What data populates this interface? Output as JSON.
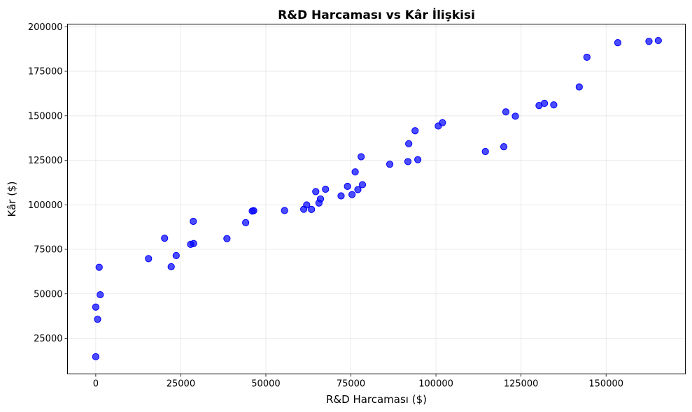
{
  "chart_data": {
    "type": "scatter",
    "title": "R&D Harcaması vs Kâr İlişkisi",
    "xlabel": "R&D Harcaması ($)",
    "ylabel": "Kâr ($)",
    "xlim": [
      -8300,
      173300
    ],
    "ylim": [
      5000,
      201500
    ],
    "xticks": [
      0,
      25000,
      50000,
      75000,
      100000,
      125000,
      150000
    ],
    "xtick_labels": [
      "0",
      "25000",
      "50000",
      "75000",
      "100000",
      "125000",
      "150000"
    ],
    "yticks": [
      25000,
      50000,
      75000,
      100000,
      125000,
      150000,
      175000,
      200000
    ],
    "ytick_labels": [
      "25000",
      "50000",
      "75000",
      "100000",
      "125000",
      "150000",
      "175000",
      "200000"
    ],
    "grid": true,
    "color": "#0000ff",
    "x": [
      0,
      0,
      542,
      1000,
      1316,
      15506,
      20230,
      22178,
      23641,
      27893,
      28664,
      28754,
      38559,
      44070,
      46014,
      46426,
      55494,
      61136,
      61994,
      63408,
      64665,
      65605,
      66052,
      67533,
      72108,
      73995,
      75329,
      76254,
      77045,
      78014,
      78389,
      86420,
      91749,
      91992,
      93864,
      94657,
      100672,
      101913,
      114524,
      119943,
      120543,
      123335,
      130298,
      131877,
      134615,
      142108,
      144372,
      153442,
      162598,
      165349
    ],
    "y": [
      14681,
      42560,
      35674,
      64927,
      49491,
      69759,
      81230,
      65200,
      71498,
      77798,
      90708,
      78240,
      81005,
      89949,
      96479,
      96712,
      96779,
      97483,
      99937,
      97427,
      107404,
      101004,
      103282,
      108734,
      105008,
      110352,
      105733,
      118474,
      108552,
      126992,
      111313,
      122777,
      124267,
      134307,
      141586,
      125370,
      144259,
      146122,
      129917,
      132603,
      152212,
      149760,
      155753,
      156991,
      156123,
      166188,
      182902,
      191050,
      191792,
      192262
    ]
  }
}
